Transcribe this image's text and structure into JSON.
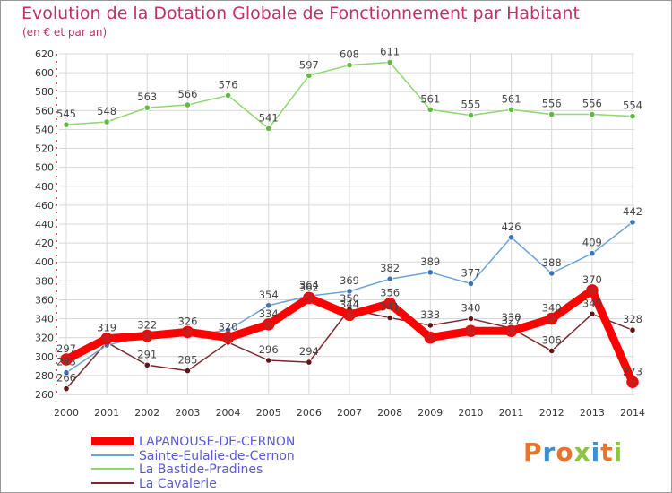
{
  "title": "Evolution de la Dotation Globale de Fonctionnement par Habitant",
  "subtitle": "(en € et par an)",
  "logo_text": "Proxiti",
  "colors": {
    "title": "#c0306a",
    "grid": "#d8d8d8",
    "axis_red": "#d21a1a",
    "legend_text": "#5a5ad6"
  },
  "chart_data": {
    "type": "line",
    "title": "Evolution de la Dotation Globale de Fonctionnement par Habitant",
    "subtitle": "(en € et par an)",
    "x": [
      "2000",
      "2001",
      "2002",
      "2003",
      "2004",
      "2005",
      "2006",
      "2007",
      "2008",
      "2009",
      "2010",
      "2011",
      "2012",
      "2013",
      "2014"
    ],
    "ylim": [
      260,
      620
    ],
    "yticks": [
      260,
      280,
      300,
      320,
      340,
      360,
      380,
      400,
      420,
      440,
      460,
      480,
      500,
      520,
      540,
      560,
      580,
      600,
      620
    ],
    "grid": true,
    "legend_position": "bottom-left",
    "series": [
      {
        "name": "LAPANOUSE-DE-CERNON",
        "color": "#ff0000",
        "markerColor": "#cc1b1b",
        "width": 9,
        "values": [
          297,
          319,
          322,
          326,
          320,
          334,
          362,
          344,
          356,
          320,
          327,
          327,
          340,
          370,
          273
        ],
        "labels": [
          "297",
          "319",
          "322",
          "326",
          "320",
          "334",
          "362",
          "344",
          "356",
          "",
          "",
          "327",
          "340",
          "370",
          "273"
        ]
      },
      {
        "name": "Sainte-Eulalie-de-Cernon",
        "color": "#6ba3d6",
        "markerColor": "#3c74b8",
        "width": 1.5,
        "values": [
          283,
          312,
          322,
          322,
          328,
          354,
          364,
          369,
          382,
          389,
          377,
          426,
          388,
          409,
          442
        ],
        "labels": [
          "283",
          "",
          "",
          "",
          "",
          "354",
          "364",
          "369",
          "382",
          "389",
          "377",
          "426",
          "388",
          "409",
          "442"
        ]
      },
      {
        "name": "La Bastide-Pradines",
        "color": "#8fd870",
        "markerColor": "#62b840",
        "width": 1.5,
        "values": [
          545,
          548,
          563,
          566,
          576,
          541,
          597,
          608,
          611,
          561,
          555,
          561,
          556,
          556,
          554
        ],
        "labels": [
          "545",
          "548",
          "563",
          "566",
          "576",
          "541",
          "597",
          "608",
          "611",
          "561",
          "555",
          "561",
          "556",
          "556",
          "554"
        ]
      },
      {
        "name": "La Cavalerie",
        "color": "#7a2a2a",
        "markerColor": "#5e1616",
        "width": 1.5,
        "values": [
          266,
          315,
          291,
          285,
          315,
          296,
          294,
          350,
          341,
          333,
          340,
          330,
          306,
          345,
          328
        ],
        "labels": [
          "266",
          "",
          "291",
          "285",
          "",
          "296",
          "294",
          "350",
          "341",
          "333",
          "340",
          "330",
          "306",
          "345",
          "328"
        ]
      }
    ]
  }
}
